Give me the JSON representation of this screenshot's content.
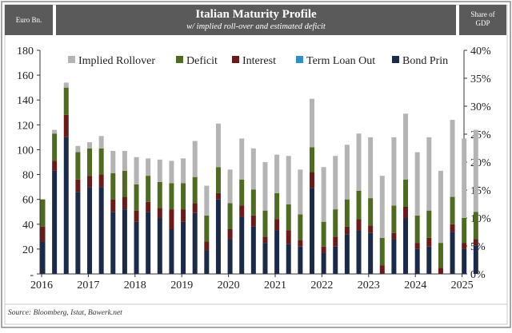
{
  "header": {
    "left_label": "Euro Bn.",
    "title": "Italian Maturity Profile",
    "subtitle": "w/ implied roll-over and estimated deficit",
    "right_label_line1": "Share of",
    "right_label_line2": "GDP"
  },
  "source": "Source: Bloomberg, Istat, Bawerk.net",
  "colors": {
    "Implied Rollover": "#b4b4b4",
    "Deficit": "#4f6b22",
    "Interest": "#6b1a1a",
    "Term Loan Out": "#2e8fc8",
    "Bond Prin": "#1a2a48"
  },
  "chart_data": {
    "type": "bar",
    "stacked": true,
    "ylim": [
      0,
      180
    ],
    "yticks": [
      "-",
      "20",
      "40",
      "60",
      "80",
      "100",
      "120",
      "140",
      "160",
      "180"
    ],
    "y2lim": [
      0,
      40
    ],
    "y2ticks": [
      "0%",
      "5%",
      "10%",
      "15%",
      "20%",
      "25%",
      "30%",
      "35%",
      "40%"
    ],
    "xticks": [
      "2016",
      "2017",
      "2018",
      "2019",
      "2020",
      "2021",
      "2022",
      "2023",
      "2024",
      "2025"
    ],
    "legend": [
      "Implied Rollover",
      "Deficit",
      "Interest",
      "Term Loan Out",
      "Bond Prin"
    ],
    "legend_position": "top",
    "grid": false,
    "series": [
      {
        "name": "Bond Prin",
        "values": [
          26,
          83,
          110,
          66,
          70,
          70,
          50,
          52,
          42,
          50,
          45,
          36,
          42,
          49,
          19,
          60,
          28,
          46,
          38,
          25,
          35,
          24,
          22,
          69,
          17,
          22,
          32,
          35,
          33,
          0,
          28,
          45,
          20,
          22,
          0,
          34,
          20,
          23
        ]
      },
      {
        "name": "Term Loan Out",
        "values": [
          0,
          0,
          0,
          0,
          0,
          0,
          0,
          0,
          0,
          0,
          0,
          0,
          0,
          0,
          0,
          0,
          0,
          0,
          0,
          0,
          0,
          0,
          0,
          0,
          0,
          0,
          0,
          0,
          0,
          0,
          0,
          0,
          0,
          0,
          0,
          0,
          0,
          0
        ]
      },
      {
        "name": "Interest",
        "values": [
          12,
          8,
          18,
          10,
          9,
          10,
          10,
          10,
          9,
          8,
          8,
          16,
          10,
          8,
          7,
          5,
          8,
          9,
          9,
          5,
          9,
          11,
          5,
          13,
          5,
          8,
          6,
          9,
          6,
          7,
          5,
          9,
          5,
          7,
          5,
          6,
          5,
          5
        ]
      },
      {
        "name": "Deficit",
        "values": [
          22,
          22,
          22,
          22,
          22,
          21,
          21,
          21,
          21,
          21,
          21,
          21,
          21,
          21,
          21,
          21,
          21,
          21,
          21,
          21,
          21,
          21,
          21,
          20,
          20,
          22,
          22,
          23,
          22,
          22,
          22,
          22,
          22,
          22,
          20,
          22,
          20,
          22
        ]
      },
      {
        "name": "Implied Rollover",
        "values": [
          0,
          3,
          4,
          5,
          5,
          10,
          18,
          16,
          22,
          14,
          18,
          18,
          20,
          29,
          24,
          35,
          27,
          33,
          33,
          39,
          31,
          39,
          36,
          39,
          44,
          43,
          44,
          46,
          49,
          50,
          55,
          53,
          51,
          59,
          58,
          62,
          64,
          66
        ]
      }
    ]
  }
}
